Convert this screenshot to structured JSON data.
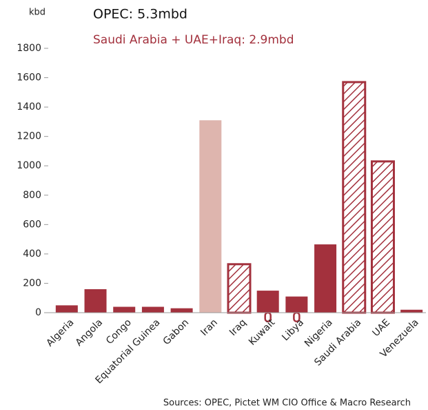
{
  "chart_data": {
    "type": "bar",
    "title": "OPEC: 5.3mbd",
    "subtitle": "Saudi Arabia + UAE+Iraq: 2.9mbd",
    "y_axis_label": "kbd",
    "source": "Sources: OPEC, Pictet WM CIO Office & Macro Research",
    "categories": [
      "Algeria",
      "Angola",
      "Congo",
      "Equatorial Guinea",
      "Gabon",
      "Iran",
      "Iraq",
      "Kuwait",
      "Libya",
      "Nigeria",
      "Saudi Arabia",
      "UAE",
      "Venezuela"
    ],
    "values": [
      50,
      160,
      40,
      40,
      30,
      1310,
      330,
      150,
      110,
      465,
      1570,
      1030,
      20
    ],
    "colors": [
      "#a3313d",
      "#a3313d",
      "#a3313d",
      "#a3313d",
      "#a3313d",
      "#deb5ae",
      "#a3313d",
      "#a3313d",
      "#a3313d",
      "#a3313d",
      "#a3313d",
      "#a3313d",
      "#a3313d"
    ],
    "hatched": [
      false,
      false,
      false,
      false,
      false,
      false,
      true,
      false,
      false,
      false,
      true,
      true,
      false
    ],
    "negative_values": [
      null,
      null,
      null,
      null,
      null,
      null,
      null,
      -60,
      -60,
      null,
      null,
      null,
      null
    ],
    "ylim": [
      0,
      1800
    ],
    "yticks": [
      0,
      200,
      400,
      600,
      800,
      1000,
      1200,
      1400,
      1600,
      1800
    ],
    "grid": false
  }
}
